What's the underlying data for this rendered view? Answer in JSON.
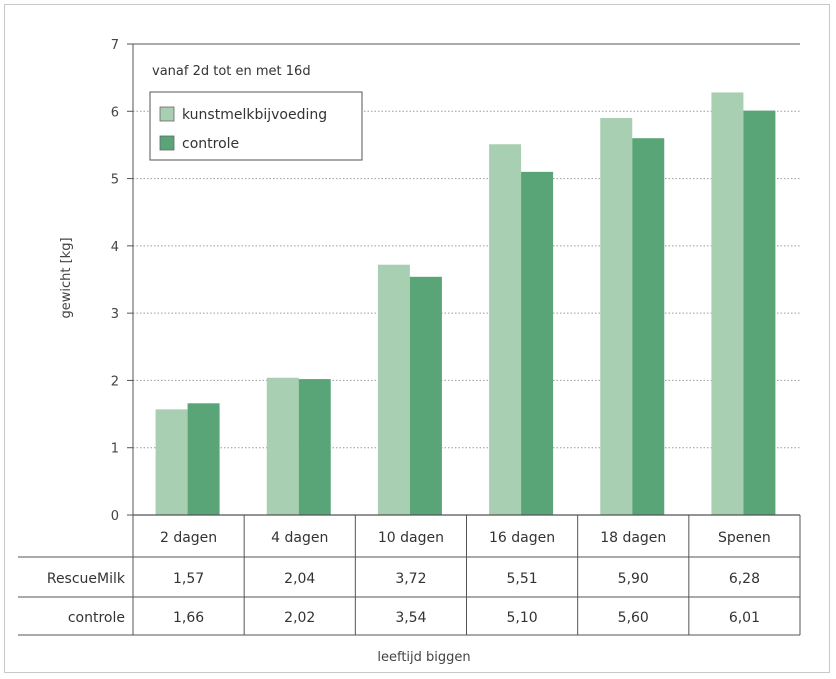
{
  "chart_data": {
    "type": "bar",
    "annotation": "vanaf 2d tot en met 16d",
    "categories": [
      "2 dagen",
      "4 dagen",
      "10 dagen",
      "16 dagen",
      "18 dagen",
      "Spenen"
    ],
    "series": [
      {
        "name": "kunstmelkbijvoeding",
        "table_label": "RescueMilk",
        "color": "#a9cfb3",
        "values": [
          1.57,
          2.04,
          3.72,
          5.51,
          5.9,
          6.28
        ],
        "labels": [
          "1,57",
          "2,04",
          "3,72",
          "5,51",
          "5,90",
          "6,28"
        ]
      },
      {
        "name": "controle",
        "table_label": "controle",
        "color": "#5aa577",
        "values": [
          1.66,
          2.02,
          3.54,
          5.1,
          5.6,
          6.01
        ],
        "labels": [
          "1,66",
          "2,02",
          "3,54",
          "5,10",
          "5,60",
          "6,01"
        ]
      }
    ],
    "ylabel": "gewicht [kg]",
    "xlabel": "leeftijd biggen",
    "ylim": [
      0,
      7
    ],
    "yticks": [
      0,
      1,
      2,
      3,
      4,
      5,
      6,
      7
    ],
    "grid": true,
    "legend_position": "top-left"
  }
}
